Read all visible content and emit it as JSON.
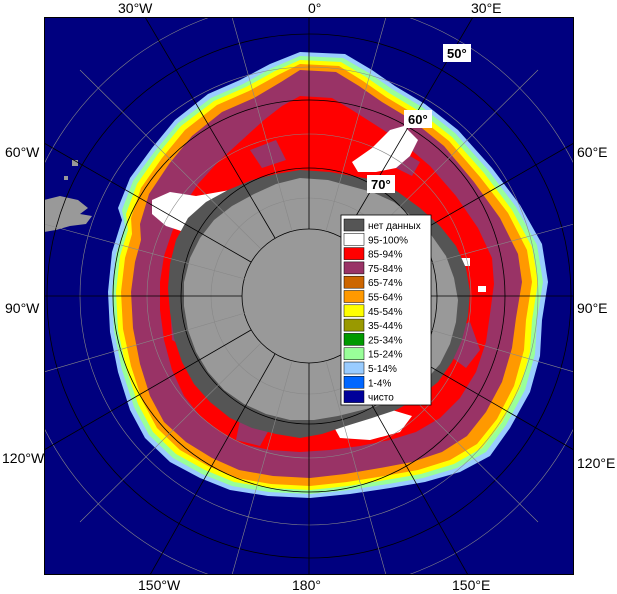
{
  "longitude_labels": {
    "top": [
      "30°W",
      "0°",
      "30°E"
    ],
    "bottom": [
      "150°W",
      "180°",
      "150°E"
    ],
    "left": [
      "60°W",
      "90°W",
      "120°W"
    ],
    "right": [
      "60°E",
      "90°E",
      "120°E"
    ]
  },
  "latitude_labels": [
    "50°",
    "60°",
    "70°"
  ],
  "legend": {
    "items": [
      {
        "label": "нет данных",
        "color": "#555555"
      },
      {
        "label": "95-100%",
        "color": "#ffffff"
      },
      {
        "label": "85-94%",
        "color": "#ff0000"
      },
      {
        "label": "75-84%",
        "color": "#993366"
      },
      {
        "label": "65-74%",
        "color": "#cc6600"
      },
      {
        "label": "55-64%",
        "color": "#ff9900"
      },
      {
        "label": "45-54%",
        "color": "#ffff00"
      },
      {
        "label": "35-44%",
        "color": "#999900"
      },
      {
        "label": "25-34%",
        "color": "#009900"
      },
      {
        "label": "15-24%",
        "color": "#99ff99"
      },
      {
        "label": "5-14%",
        "color": "#99ccff"
      },
      {
        "label": "1-4%",
        "color": "#0066ff"
      },
      {
        "label": "чисто",
        "color": "#000099"
      }
    ]
  },
  "colors": {
    "ocean": "#00007f",
    "land": "#999999",
    "no_data": "#555555",
    "ice_max": "#ffffff",
    "ice_high": "#ff0000",
    "ice_mid": "#993366",
    "ice_edge_orange": "#ff9900",
    "ice_edge_yellow": "#ffff00",
    "ice_edge_green": "#99ff99",
    "ice_edge_blue": "#99ccff"
  }
}
